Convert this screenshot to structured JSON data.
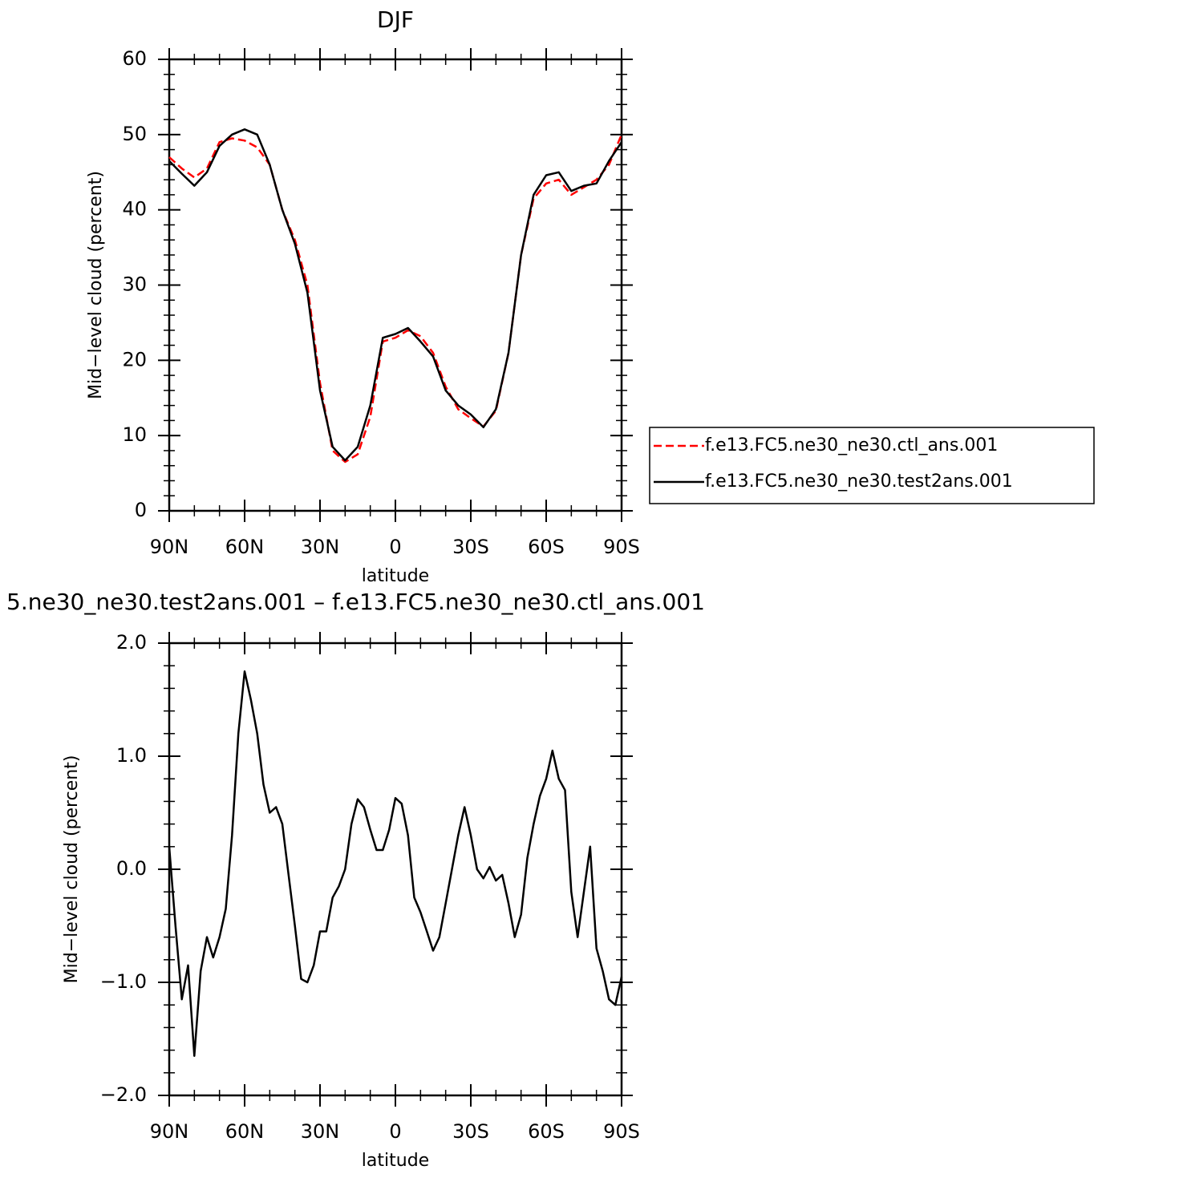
{
  "chart_data": [
    {
      "type": "line",
      "title": "DJF",
      "x_label": "latitude",
      "y_label": "Mid−level cloud (percent)",
      "x": [
        90,
        85,
        80,
        75,
        70,
        65,
        60,
        55,
        50,
        45,
        40,
        35,
        30,
        25,
        20,
        15,
        10,
        5,
        0,
        -5,
        -10,
        -15,
        -20,
        -25,
        -30,
        -35,
        -40,
        -45,
        -50,
        -55,
        -60,
        -65,
        -70,
        -75,
        -80,
        -85,
        -90
      ],
      "series": [
        {
          "name": "f.e13.FC5.ne30_ne30.ctl_ans.001",
          "color": "#ff0000",
          "linestyle": "dashed",
          "values": [
            47,
            45.5,
            44.3,
            45.5,
            49,
            49.5,
            49.2,
            48.3,
            46,
            40,
            36,
            30,
            17,
            8,
            6.5,
            7.5,
            12.5,
            22.5,
            23,
            24,
            23.2,
            21,
            16.5,
            13.5,
            12.3,
            11.2,
            13.3,
            21,
            34,
            41.5,
            43.5,
            44,
            42,
            43,
            44,
            46,
            50
          ]
        },
        {
          "name": "f.e13.FC5.ne30_ne30.test2ans.001",
          "color": "#000000",
          "linestyle": "solid",
          "values": [
            46.5,
            44.8,
            43.2,
            45,
            48.5,
            50,
            50.7,
            50,
            46,
            40,
            35.5,
            29,
            16,
            8.5,
            6.7,
            8.5,
            14,
            23,
            23.5,
            24.3,
            22.5,
            20.5,
            16,
            14,
            12.8,
            11.1,
            13.5,
            21,
            34,
            42,
            44.6,
            45,
            42.5,
            43.2,
            43.5,
            46.5,
            49
          ]
        }
      ],
      "xlim": [
        90,
        -90
      ],
      "xticks": [
        {
          "value": 90,
          "label": "90N"
        },
        {
          "value": 60,
          "label": "60N"
        },
        {
          "value": 30,
          "label": "30N"
        },
        0,
        {
          "value": -30,
          "label": "30S"
        },
        {
          "value": -60,
          "label": "60S"
        },
        {
          "value": -90,
          "label": "90S"
        }
      ],
      "ylim": [
        0,
        60
      ],
      "yticks": [
        0,
        10,
        20,
        30,
        40,
        50,
        60
      ],
      "legend": "right"
    },
    {
      "type": "line",
      "title": "5.ne30_ne30.test2ans.001 – f.e13.FC5.ne30_ne30.ctl_ans.001",
      "x_label": "latitude",
      "y_label": "Mid−level cloud (percent)",
      "x": [
        90,
        87.5,
        85,
        82.5,
        80,
        77.5,
        75,
        72.5,
        70,
        67.5,
        65,
        62.5,
        60,
        57.5,
        55,
        52.5,
        50,
        47.5,
        45,
        42.5,
        40,
        37.5,
        35,
        32.5,
        30,
        27.5,
        25,
        22.5,
        20,
        17.5,
        15,
        12.5,
        10,
        7.5,
        5,
        2.5,
        0,
        -2.5,
        -5,
        -7.5,
        -10,
        -12.5,
        -15,
        -17.5,
        -20,
        -22.5,
        -25,
        -27.5,
        -30,
        -32.5,
        -35,
        -37.5,
        -40,
        -42.5,
        -45,
        -47.5,
        -50,
        -52.5,
        -55,
        -57.5,
        -60,
        -62.5,
        -65,
        -67.5,
        -70,
        -72.5,
        -75,
        -77.5,
        -80,
        -82.5,
        -85,
        -87.5,
        -90
      ],
      "series": [
        {
          "color": "#000000",
          "linestyle": "solid",
          "values": [
            0.2,
            -0.5,
            -1.15,
            -0.85,
            -1.65,
            -0.9,
            -0.6,
            -0.78,
            -0.6,
            -0.35,
            0.3,
            1.2,
            1.75,
            1.5,
            1.2,
            0.75,
            0.5,
            0.55,
            0.4,
            -0.05,
            -0.5,
            -0.97,
            -1.0,
            -0.85,
            -0.55,
            -0.55,
            -0.25,
            -0.15,
            0.0,
            0.4,
            0.62,
            0.55,
            0.35,
            0.17,
            0.17,
            0.35,
            0.63,
            0.58,
            0.3,
            -0.25,
            -0.38,
            -0.55,
            -0.72,
            -0.6,
            -0.3,
            0.0,
            0.3,
            0.55,
            0.3,
            0.0,
            -0.08,
            0.02,
            -0.1,
            -0.05,
            -0.3,
            -0.6,
            -0.4,
            0.1,
            0.4,
            0.65,
            0.8,
            1.05,
            0.8,
            0.7,
            -0.2,
            -0.6,
            -0.2,
            0.2,
            -0.7,
            -0.9,
            -1.15,
            -1.2,
            -0.95
          ]
        }
      ],
      "xlim": [
        90,
        -90
      ],
      "xticks": [
        {
          "value": 90,
          "label": "90N"
        },
        {
          "value": 60,
          "label": "60N"
        },
        {
          "value": 30,
          "label": "30N"
        },
        0,
        {
          "value": -30,
          "label": "30S"
        },
        {
          "value": -60,
          "label": "60S"
        },
        {
          "value": -90,
          "label": "90S"
        }
      ],
      "ylim": [
        -2,
        2
      ],
      "yticks": [
        {
          "value": -2,
          "label": "−2.0"
        },
        {
          "value": -1,
          "label": "−1.0"
        },
        {
          "value": 0,
          "label": "0.0"
        },
        {
          "value": 1,
          "label": "1.0"
        },
        {
          "value": 2,
          "label": "2.0"
        }
      ]
    }
  ]
}
